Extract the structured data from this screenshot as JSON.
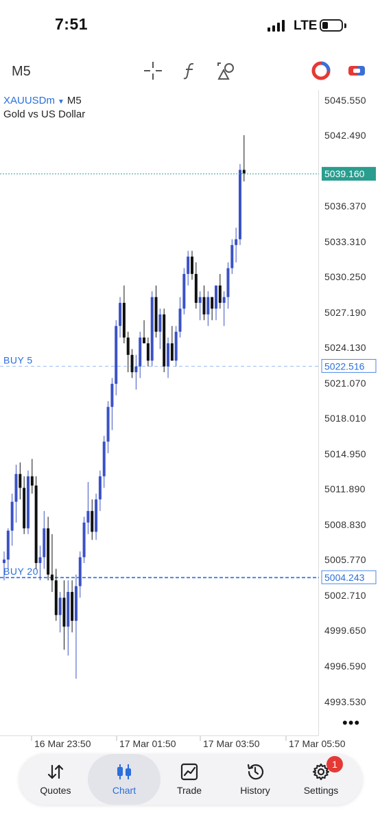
{
  "status_bar": {
    "time": "7:51",
    "network": "LTE"
  },
  "toolbar": {
    "timeframe": "M5",
    "icons": [
      "crosshair-icon",
      "indicator-f-icon",
      "objects-shapes-icon",
      "one-click-trading-icon",
      "trade-toggle-icon"
    ]
  },
  "chart": {
    "symbol": "XAUUSDm",
    "timeframe": "M5",
    "description": "Gold vs US Dollar",
    "price_labels": [
      "5045.550",
      "5042.490",
      "5036.370",
      "5033.310",
      "5030.250",
      "5027.190",
      "5024.130",
      "5021.070",
      "5018.010",
      "5014.950",
      "5011.890",
      "5008.830",
      "5005.770",
      "5002.710",
      "4999.650",
      "4996.590",
      "4993.530"
    ],
    "time_labels": [
      "16 Mar 23:50",
      "17 Mar 01:50",
      "17 Mar 03:50",
      "17 Mar 05:50"
    ],
    "current_price": "5039.160",
    "orders": [
      {
        "label": "BUY 5",
        "price": "5022.516"
      },
      {
        "label": "BUY 20",
        "price": "5004.243"
      }
    ],
    "colors": {
      "bull": "#3b52c4",
      "bear": "#111111",
      "bid_line": "#2a9d8f",
      "order_line": "#4a86e8",
      "accent": "#2a6fdb"
    }
  },
  "chart_data": {
    "type": "candlestick",
    "symbol": "XAUUSDm",
    "timeframe": "M5",
    "ylim": [
      4991.5,
      5047.5
    ],
    "x_ticks": [
      "16 Mar 23:50",
      "17 Mar 01:50",
      "17 Mar 03:50",
      "17 Mar 05:50"
    ],
    "candles": [
      [
        5005.5,
        5006.5,
        5004.0,
        5005.8
      ],
      [
        5005.8,
        5008.5,
        5005.0,
        5008.3
      ],
      [
        5008.3,
        5011.5,
        5007.0,
        5010.8
      ],
      [
        5010.8,
        5014.0,
        5009.0,
        5013.2
      ],
      [
        5013.2,
        5014.2,
        5011.0,
        5012.0
      ],
      [
        5012.0,
        5013.0,
        5008.0,
        5008.5
      ],
      [
        5008.5,
        5013.5,
        5008.0,
        5013.0
      ],
      [
        5013.0,
        5014.5,
        5011.5,
        5012.2
      ],
      [
        5012.2,
        5013.0,
        5005.0,
        5005.5
      ],
      [
        5005.5,
        5007.0,
        5004.0,
        5006.0
      ],
      [
        5006.0,
        5010.0,
        5005.0,
        5008.5
      ],
      [
        5008.5,
        5009.5,
        5004.0,
        5004.5
      ],
      [
        5004.5,
        5008.0,
        5003.0,
        5004.0
      ],
      [
        5004.0,
        5005.0,
        5000.5,
        5001.0
      ],
      [
        5001.0,
        5003.0,
        4999.5,
        5002.5
      ],
      [
        5002.5,
        5004.0,
        4998.0,
        5000.0
      ],
      [
        5000.0,
        5004.0,
        4997.5,
        5003.0
      ],
      [
        5003.0,
        5004.0,
        4999.5,
        5000.5
      ],
      [
        5000.5,
        5004.5,
        4995.5,
        5003.5
      ],
      [
        5003.5,
        5006.5,
        5002.5,
        5006.0
      ],
      [
        5006.0,
        5009.5,
        5005.5,
        5009.0
      ],
      [
        5009.0,
        5012.5,
        5008.0,
        5010.0
      ],
      [
        5010.0,
        5011.0,
        5007.5,
        5008.2
      ],
      [
        5008.2,
        5011.5,
        5007.5,
        5011.0
      ],
      [
        5011.0,
        5013.5,
        5010.0,
        5013.0
      ],
      [
        5013.0,
        5016.5,
        5012.0,
        5016.0
      ],
      [
        5016.0,
        5019.5,
        5015.0,
        5019.0
      ],
      [
        5019.0,
        5021.5,
        5017.0,
        5021.0
      ],
      [
        5021.0,
        5026.5,
        5020.0,
        5026.0
      ],
      [
        5026.0,
        5028.5,
        5025.0,
        5028.0
      ],
      [
        5028.0,
        5029.5,
        5024.5,
        5025.0
      ],
      [
        5025.0,
        5025.5,
        5022.0,
        5023.5
      ],
      [
        5023.5,
        5024.0,
        5021.5,
        5022.0
      ],
      [
        5022.0,
        5023.5,
        5020.5,
        5022.5
      ],
      [
        5022.5,
        5025.5,
        5021.5,
        5025.0
      ],
      [
        5025.0,
        5026.5,
        5024.5,
        5024.5
      ],
      [
        5024.5,
        5025.0,
        5022.5,
        5023.0
      ],
      [
        5023.0,
        5029.0,
        5022.5,
        5028.5
      ],
      [
        5028.5,
        5029.5,
        5025.0,
        5025.5
      ],
      [
        5025.5,
        5027.5,
        5024.0,
        5027.0
      ],
      [
        5027.0,
        5027.5,
        5022.0,
        5022.5
      ],
      [
        5022.5,
        5025.0,
        5021.5,
        5024.5
      ],
      [
        5024.5,
        5026.0,
        5023.0,
        5023.0
      ],
      [
        5023.0,
        5026.0,
        5022.5,
        5025.5
      ],
      [
        5025.5,
        5028.5,
        5025.0,
        5027.5
      ],
      [
        5027.5,
        5031.0,
        5027.0,
        5030.5
      ],
      [
        5030.5,
        5032.5,
        5029.5,
        5032.0
      ],
      [
        5032.0,
        5032.5,
        5030.0,
        5030.5
      ],
      [
        5030.5,
        5031.5,
        5027.5,
        5028.0
      ],
      [
        5028.0,
        5029.0,
        5026.5,
        5028.5
      ],
      [
        5028.5,
        5029.5,
        5026.5,
        5027.0
      ],
      [
        5027.0,
        5029.0,
        5026.0,
        5028.5
      ],
      [
        5028.5,
        5028.5,
        5026.5,
        5027.5
      ],
      [
        5027.5,
        5029.5,
        5026.5,
        5029.5
      ],
      [
        5029.5,
        5030.5,
        5027.5,
        5028.0
      ],
      [
        5028.0,
        5029.0,
        5026.0,
        5028.5
      ],
      [
        5028.5,
        5031.5,
        5027.5,
        5031.0
      ],
      [
        5031.0,
        5033.5,
        5030.5,
        5033.0
      ],
      [
        5033.0,
        5034.5,
        5031.5,
        5033.5
      ],
      [
        5033.5,
        5040.0,
        5033.0,
        5039.5
      ],
      [
        5039.5,
        5042.5,
        5038.5,
        5039.2
      ]
    ],
    "current_price": 5039.16,
    "orders": [
      {
        "label": "BUY 5",
        "price": 5022.516
      },
      {
        "label": "BUY 20",
        "price": 5004.243
      }
    ]
  },
  "nav": [
    {
      "label": "Quotes",
      "icon": "quotes-arrows-icon"
    },
    {
      "label": "Chart",
      "icon": "candles-icon"
    },
    {
      "label": "Trade",
      "icon": "trade-chart-icon"
    },
    {
      "label": "History",
      "icon": "history-clock-icon"
    },
    {
      "label": "Settings",
      "icon": "gear-icon"
    }
  ],
  "settings_badge": "1"
}
